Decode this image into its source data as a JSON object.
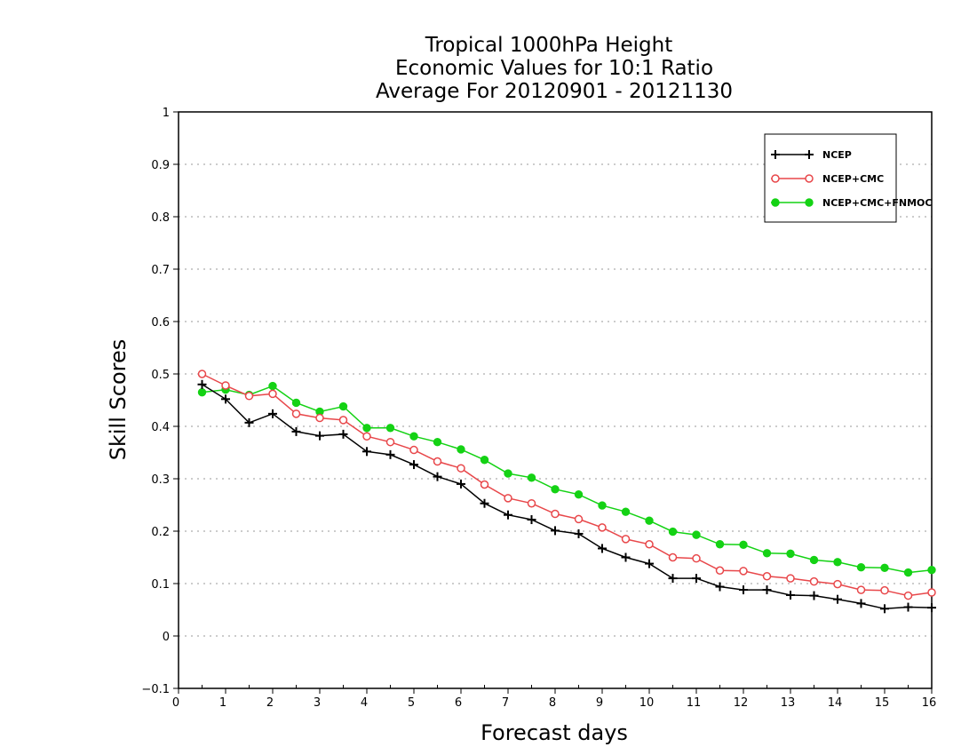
{
  "chart_data": {
    "type": "line",
    "title_lines": [
      "Tropical 1000hPa Height",
      "Economic Values for 10:1 Ratio",
      "Average For 20120901 - 20121130"
    ],
    "xlabel": "Forecast days",
    "ylabel": "Skill Scores",
    "xlim": [
      0,
      16
    ],
    "ylim": [
      -0.1,
      1
    ],
    "xticks": [
      "0",
      "1",
      "2",
      "3",
      "4",
      "5",
      "6",
      "7",
      "8",
      "9",
      "10",
      "11",
      "12",
      "13",
      "14",
      "15",
      "16"
    ],
    "yticks": [
      "−0.1",
      "0",
      "0.1",
      "0.2",
      "0.3",
      "0.4",
      "0.5",
      "0.6",
      "0.7",
      "0.8",
      "0.9",
      "1"
    ],
    "grid": "horizontal dotted",
    "legend_position": "top-right",
    "x": [
      0.5,
      1,
      1.5,
      2,
      2.5,
      3,
      3.5,
      4,
      4.5,
      5,
      5.5,
      6,
      6.5,
      7,
      7.5,
      8,
      8.5,
      9,
      9.5,
      10,
      10.5,
      11,
      11.5,
      12,
      12.5,
      13,
      13.5,
      14,
      14.5,
      15,
      15.5,
      16
    ],
    "series": [
      {
        "name": "NCEP",
        "color": "#000000",
        "marker": "plus",
        "values": [
          0.48,
          0.452,
          0.407,
          0.424,
          0.39,
          0.382,
          0.385,
          0.352,
          0.346,
          0.327,
          0.304,
          0.29,
          0.253,
          0.231,
          0.222,
          0.201,
          0.195,
          0.167,
          0.15,
          0.138,
          0.11,
          0.11,
          0.094,
          0.088,
          0.088,
          0.078,
          0.077,
          0.07,
          0.062,
          0.052,
          0.055,
          0.054
        ]
      },
      {
        "name": "NCEP+CMC",
        "color": "#e8474a",
        "marker": "open-circle",
        "values": [
          0.5,
          0.478,
          0.458,
          0.462,
          0.424,
          0.416,
          0.412,
          0.381,
          0.37,
          0.355,
          0.333,
          0.32,
          0.289,
          0.263,
          0.253,
          0.233,
          0.223,
          0.207,
          0.185,
          0.175,
          0.15,
          0.148,
          0.125,
          0.124,
          0.114,
          0.11,
          0.104,
          0.099,
          0.088,
          0.087,
          0.077,
          0.083
        ]
      },
      {
        "name": "NCEP+CMC+FNMOC",
        "color": "#14d214",
        "marker": "filled-circle",
        "values": [
          0.465,
          0.47,
          0.46,
          0.477,
          0.445,
          0.428,
          0.438,
          0.397,
          0.397,
          0.381,
          0.37,
          0.356,
          0.336,
          0.31,
          0.302,
          0.28,
          0.27,
          0.249,
          0.237,
          0.22,
          0.199,
          0.193,
          0.175,
          0.174,
          0.158,
          0.157,
          0.145,
          0.141,
          0.131,
          0.13,
          0.121,
          0.126
        ]
      }
    ]
  }
}
